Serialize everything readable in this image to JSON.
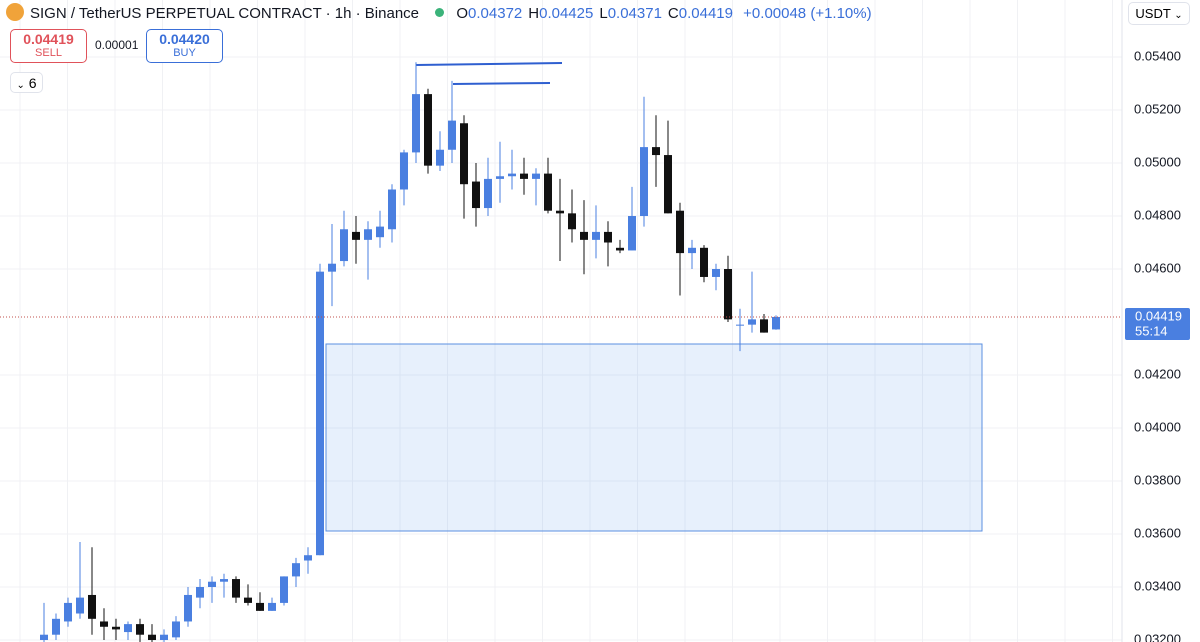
{
  "chart_data": {
    "type": "candlestick",
    "title": "SIGN / TetherUS PERPETUAL CONTRACT · 1h · Binance",
    "ohlc_legend": [
      {
        "label": "O",
        "value": "0.04372"
      },
      {
        "label": "H",
        "value": "0.04425"
      },
      {
        "label": "L",
        "value": "0.04371"
      },
      {
        "label": "C",
        "value": "0.04419"
      }
    ],
    "change": "+0.00048 (+1.10%)",
    "sell": {
      "price": "0.04419",
      "label": "SELL"
    },
    "spread": "0.00001",
    "buy": {
      "price": "0.04420",
      "label": "BUY"
    },
    "indicators_count": "6",
    "currency": "USDT",
    "last_price": {
      "value": 0.04419,
      "label": "0.04419"
    },
    "countdown": "55:14",
    "up_color": "#4a7fe0",
    "down_color": "#111111",
    "ylim": [
      0.031925,
      0.056151
    ],
    "yticks": [
      {
        "value": 0.054,
        "label": "0.05400"
      },
      {
        "value": 0.052,
        "label": "0.05200"
      },
      {
        "value": 0.05,
        "label": "0.05000"
      },
      {
        "value": 0.048,
        "label": "0.04800"
      },
      {
        "value": 0.046,
        "label": "0.04600"
      },
      {
        "value": 0.042,
        "label": "0.04200"
      },
      {
        "value": 0.04,
        "label": "0.04000"
      },
      {
        "value": 0.038,
        "label": "0.03800"
      },
      {
        "value": 0.036,
        "label": "0.03600"
      },
      {
        "value": 0.034,
        "label": "0.03400"
      },
      {
        "value": 0.032,
        "label": "0.03200"
      }
    ],
    "grid": true,
    "open": [
      0.032,
      0.0322,
      0.0327,
      0.033,
      0.0337,
      0.0327,
      0.0325,
      0.0323,
      0.0326,
      0.0322,
      0.032,
      0.0321,
      0.0327,
      0.0336,
      0.034,
      0.0342,
      0.0343,
      0.0336,
      0.0334,
      0.0331,
      0.0334,
      0.0344,
      0.035,
      0.0352,
      0.0459,
      0.0463,
      0.0474,
      0.0471,
      0.0472,
      0.0475,
      0.049,
      0.0504,
      0.0526,
      0.0499,
      0.0505,
      0.0515,
      0.0493,
      0.0483,
      0.0494,
      0.0495,
      0.0496,
      0.0494,
      0.0496,
      0.0482,
      0.0481,
      0.0474,
      0.0471,
      0.0474,
      0.0468,
      0.0467,
      0.048,
      0.0506,
      0.0503,
      0.0482,
      0.0466,
      0.0468,
      0.0457,
      0.046,
      0.0439,
      0.0439,
      0.0441,
      0.04372
    ],
    "high": [
      0.0334,
      0.033,
      0.0336,
      0.0357,
      0.0355,
      0.0332,
      0.0328,
      0.0327,
      0.0328,
      0.0326,
      0.0324,
      0.0329,
      0.034,
      0.0343,
      0.0344,
      0.0345,
      0.0344,
      0.0341,
      0.0338,
      0.0336,
      0.0344,
      0.0351,
      0.0355,
      0.0462,
      0.0477,
      0.0482,
      0.048,
      0.0478,
      0.0482,
      0.0492,
      0.0505,
      0.0538,
      0.0528,
      0.0512,
      0.0531,
      0.0518,
      0.05,
      0.0502,
      0.0508,
      0.0505,
      0.0502,
      0.0498,
      0.0502,
      0.0494,
      0.049,
      0.0486,
      0.0484,
      0.0478,
      0.0471,
      0.0491,
      0.0525,
      0.0518,
      0.0516,
      0.0485,
      0.0471,
      0.0469,
      0.0462,
      0.0465,
      0.0445,
      0.0459,
      0.0443,
      0.04425
    ],
    "low": [
      0.0319,
      0.032,
      0.0325,
      0.0328,
      0.0322,
      0.032,
      0.032,
      0.032,
      0.0319,
      0.0319,
      0.0319,
      0.032,
      0.0325,
      0.0332,
      0.0334,
      0.0336,
      0.0334,
      0.0333,
      0.0331,
      0.0331,
      0.0333,
      0.034,
      0.0345,
      0.0352,
      0.0446,
      0.0461,
      0.0462,
      0.0456,
      0.0468,
      0.047,
      0.0484,
      0.05,
      0.0496,
      0.0497,
      0.05,
      0.0479,
      0.0476,
      0.048,
      0.0485,
      0.049,
      0.0488,
      0.0484,
      0.0481,
      0.0463,
      0.047,
      0.0458,
      0.0464,
      0.0461,
      0.0466,
      0.0467,
      0.0476,
      0.0491,
      0.0481,
      0.045,
      0.046,
      0.0455,
      0.0452,
      0.044,
      0.0429,
      0.0436,
      0.0436,
      0.04371
    ],
    "close": [
      0.0322,
      0.0328,
      0.0334,
      0.0336,
      0.0328,
      0.0325,
      0.0324,
      0.0326,
      0.0322,
      0.032,
      0.0322,
      0.0327,
      0.0337,
      0.034,
      0.0342,
      0.0343,
      0.0336,
      0.0334,
      0.0331,
      0.0334,
      0.0344,
      0.0349,
      0.0352,
      0.0459,
      0.0462,
      0.0475,
      0.0471,
      0.0475,
      0.0476,
      0.049,
      0.0504,
      0.0526,
      0.0499,
      0.0505,
      0.0516,
      0.0492,
      0.0483,
      0.0494,
      0.0495,
      0.0496,
      0.0494,
      0.0496,
      0.0482,
      0.0481,
      0.0475,
      0.0471,
      0.0474,
      0.047,
      0.0467,
      0.048,
      0.0506,
      0.0503,
      0.0481,
      0.0466,
      0.0468,
      0.0457,
      0.046,
      0.0441,
      0.0439,
      0.0441,
      0.0436,
      0.04419
    ]
  }
}
